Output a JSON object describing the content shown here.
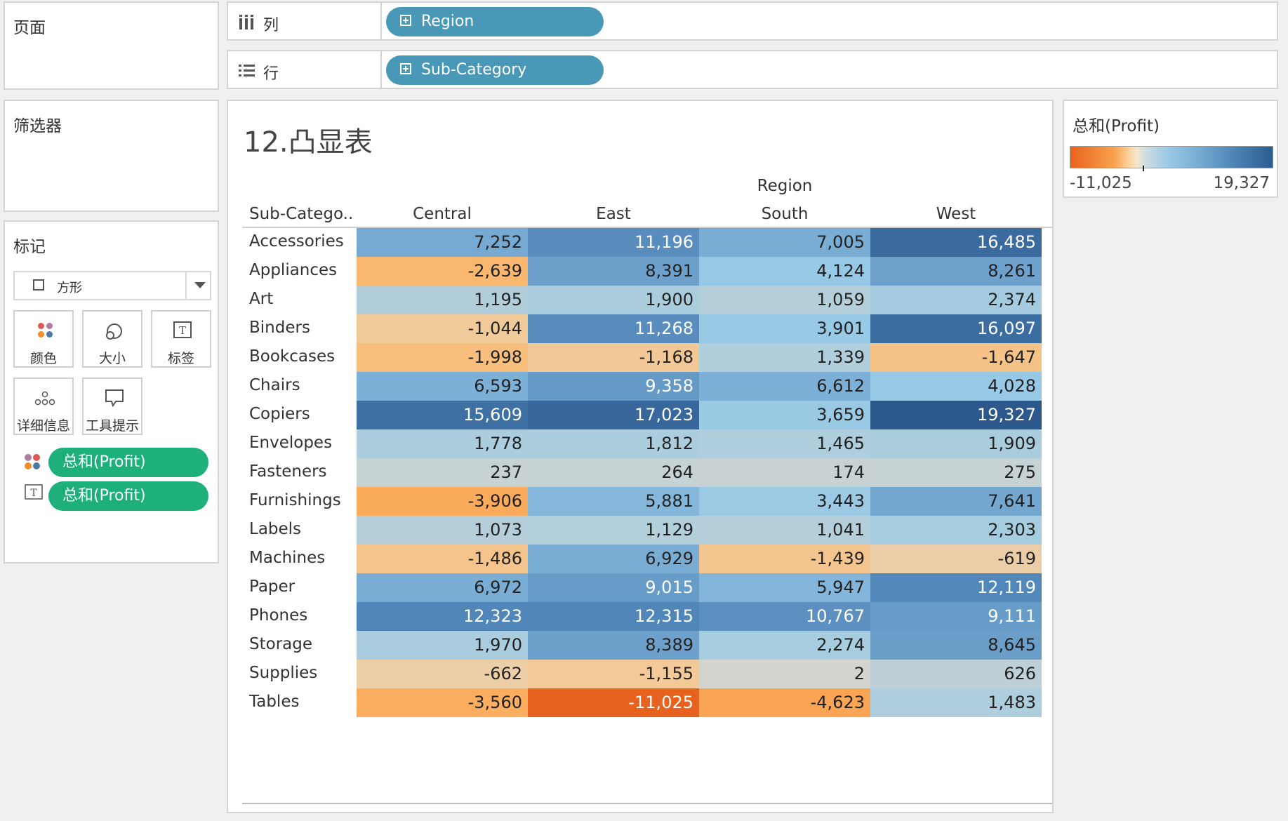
{
  "pages_panel": {
    "title": "页面"
  },
  "filters_panel": {
    "title": "筛选器"
  },
  "marks_panel": {
    "title": "标记",
    "mark_type": "方形",
    "buttons": {
      "color": "颜色",
      "size": "大小",
      "label": "标签",
      "detail": "详细信息",
      "tooltip": "工具提示"
    },
    "fields": [
      "总和(Profit)",
      "总和(Profit)"
    ]
  },
  "columns_shelf": {
    "label": "列",
    "pill": "Region"
  },
  "rows_shelf": {
    "label": "行",
    "pill": "Sub-Category"
  },
  "view": {
    "title": "12.凸显表",
    "column_group": "Region",
    "row_header": "Sub-Catego..",
    "columns": [
      "Central",
      "East",
      "South",
      "West"
    ]
  },
  "legend": {
    "title": "总和(Profit)",
    "min": "-11,025",
    "max": "19,327"
  },
  "chart_data": {
    "type": "heatmap",
    "title": "12.凸显表",
    "x": [
      "Central",
      "East",
      "South",
      "West"
    ],
    "y": [
      "Accessories",
      "Appliances",
      "Art",
      "Binders",
      "Bookcases",
      "Chairs",
      "Copiers",
      "Envelopes",
      "Fasteners",
      "Furnishings",
      "Labels",
      "Machines",
      "Paper",
      "Phones",
      "Storage",
      "Supplies",
      "Tables"
    ],
    "values": [
      [
        7252,
        11196,
        7005,
        16485
      ],
      [
        -2639,
        8391,
        4124,
        8261
      ],
      [
        1195,
        1900,
        1059,
        2374
      ],
      [
        -1044,
        11268,
        3901,
        16097
      ],
      [
        -1998,
        -1168,
        1339,
        -1647
      ],
      [
        6593,
        9358,
        6612,
        4028
      ],
      [
        15609,
        17023,
        3659,
        19327
      ],
      [
        1778,
        1812,
        1465,
        1909
      ],
      [
        237,
        264,
        174,
        275
      ],
      [
        -3906,
        5881,
        3443,
        7641
      ],
      [
        1073,
        1129,
        1041,
        2303
      ],
      [
        -1486,
        6929,
        -1439,
        -619
      ],
      [
        6972,
        9015,
        5947,
        12119
      ],
      [
        12323,
        12315,
        10767,
        9111
      ],
      [
        1970,
        8389,
        2274,
        8645
      ],
      [
        -662,
        -1155,
        2,
        626
      ],
      [
        -3560,
        -11025,
        -4623,
        1483
      ]
    ],
    "display": [
      [
        "7,252",
        "11,196",
        "7,005",
        "16,485"
      ],
      [
        "-2,639",
        "8,391",
        "4,124",
        "8,261"
      ],
      [
        "1,195",
        "1,900",
        "1,059",
        "2,374"
      ],
      [
        "-1,044",
        "11,268",
        "3,901",
        "16,097"
      ],
      [
        "-1,998",
        "-1,168",
        "1,339",
        "-1,647"
      ],
      [
        "6,593",
        "9,358",
        "6,612",
        "4,028"
      ],
      [
        "15,609",
        "17,023",
        "3,659",
        "19,327"
      ],
      [
        "1,778",
        "1,812",
        "1,465",
        "1,909"
      ],
      [
        "237",
        "264",
        "174",
        "275"
      ],
      [
        "-3,906",
        "5,881",
        "3,443",
        "7,641"
      ],
      [
        "1,073",
        "1,129",
        "1,041",
        "2,303"
      ],
      [
        "-1,486",
        "6,929",
        "-1,439",
        "-619"
      ],
      [
        "6,972",
        "9,015",
        "5,947",
        "12,119"
      ],
      [
        "12,323",
        "12,315",
        "10,767",
        "9,111"
      ],
      [
        "1,970",
        "8,389",
        "2,274",
        "8,645"
      ],
      [
        "-662",
        "-1,155",
        "2",
        "626"
      ],
      [
        "-3,560",
        "-11,025",
        "-4,623",
        "1,483"
      ]
    ],
    "color_range": [
      -11025,
      19327
    ],
    "xlabel": "Region",
    "ylabel": "Sub-Category"
  }
}
